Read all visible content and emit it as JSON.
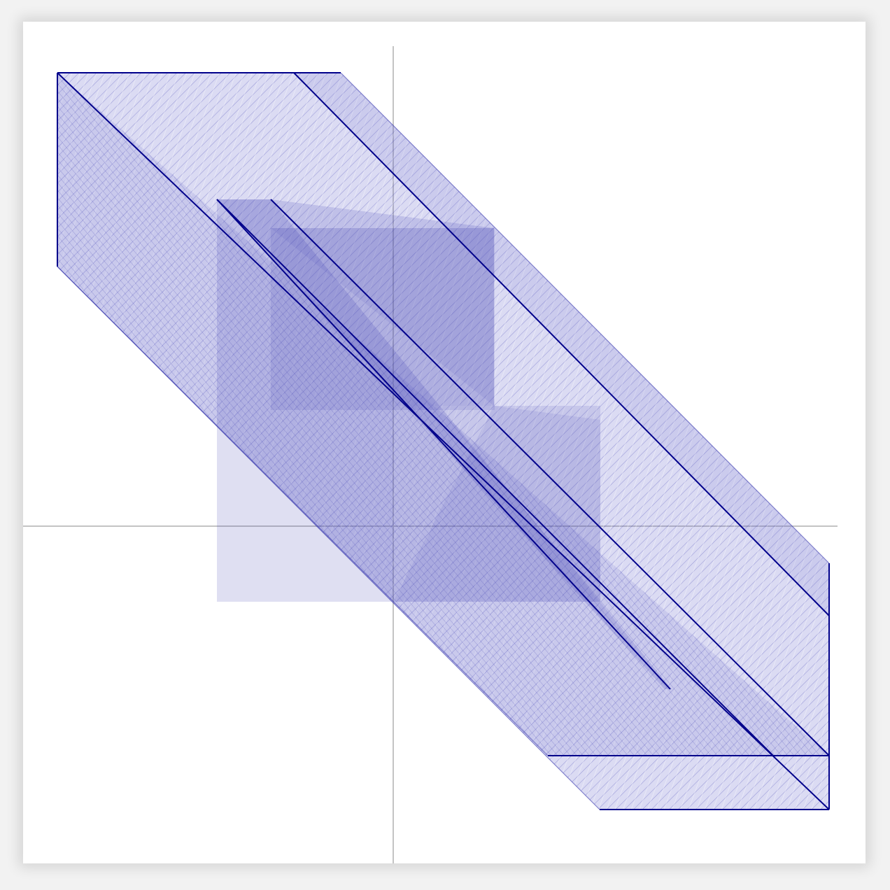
{
  "diagram": {
    "kind": "hatched overlapping parallel bands",
    "colors": {
      "background": "#ffffff",
      "page": "#f2f2f2",
      "axes": "#c4c4c4",
      "stroke": "#00008b",
      "fill": "#5a5ac8",
      "hatch": "#2a2aa8"
    }
  }
}
